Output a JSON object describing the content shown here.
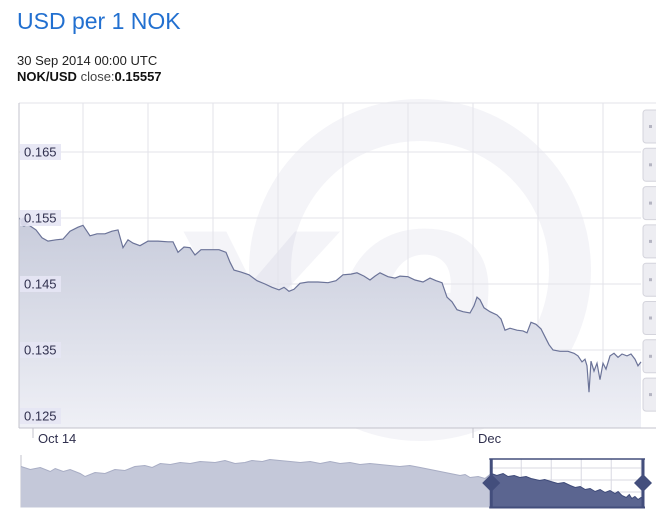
{
  "header": {
    "title": "USD per 1 NOK",
    "timestamp": "30 Sep 2014 00:00 UTC",
    "pair_label": "NOK/USD",
    "close_label": "close:",
    "close_value": "0.15557"
  },
  "colors": {
    "title_blue": "#2270d0",
    "grid": "#e3e3ea",
    "axis_line": "#c3c3cc",
    "tick_text": "#30304e",
    "ylabel_bg": "#e6e6f4",
    "line": "#6b7398",
    "area_top": "#c6cada",
    "area_bottom": "#eff0f6",
    "marker": "#4b537b",
    "nav_pale_fill": "#c4c8d9",
    "nav_pale_line": "#a8adc4",
    "nav_dark_fill": "#5b6590",
    "nav_dark_line": "#3e4a78",
    "nav_outline": "#434e7c",
    "nav_grid": "#d9d9e2",
    "side_button_bg": "#ededf2",
    "side_button_border": "#d4d4dc",
    "watermark": "rgba(110,120,160,0.08)"
  },
  "side_buttons": {
    "count": 8
  },
  "chart_data": {
    "type": "area",
    "title": "USD per 1 NOK",
    "xlabel": "",
    "ylabel": "",
    "ylim": [
      0.1232,
      0.1724
    ],
    "y_ticks": [
      0.165,
      0.155,
      0.145,
      0.135,
      0.125
    ],
    "x_ticks": [
      {
        "f": 0.0225,
        "label": "Oct 14"
      },
      {
        "f": 0.7299,
        "label": "Dec"
      }
    ],
    "x_gridlines_f": [
      0.1029,
      0.2074,
      0.3119,
      0.4164,
      0.5209,
      0.6254,
      0.7299,
      0.8344,
      0.9389
    ],
    "grid": true,
    "legend": "none",
    "series": [
      {
        "name": "NOK/USD",
        "marker_first_point": true,
        "points": [
          [
            0.0,
            0.155
          ],
          [
            0.008,
            0.1544
          ],
          [
            0.0177,
            0.1538
          ],
          [
            0.0273,
            0.1532
          ],
          [
            0.037,
            0.152
          ],
          [
            0.0466,
            0.1515
          ],
          [
            0.0595,
            0.1517
          ],
          [
            0.0707,
            0.1518
          ],
          [
            0.082,
            0.153
          ],
          [
            0.0949,
            0.1536
          ],
          [
            0.1029,
            0.1539
          ],
          [
            0.1141,
            0.1523
          ],
          [
            0.1254,
            0.1526
          ],
          [
            0.1383,
            0.1526
          ],
          [
            0.1495,
            0.153
          ],
          [
            0.1592,
            0.1532
          ],
          [
            0.1672,
            0.1505
          ],
          [
            0.1752,
            0.1517
          ],
          [
            0.1833,
            0.1512
          ],
          [
            0.1945,
            0.1508
          ],
          [
            0.2074,
            0.1515
          ],
          [
            0.2235,
            0.1515
          ],
          [
            0.2395,
            0.1514
          ],
          [
            0.2476,
            0.1514
          ],
          [
            0.2556,
            0.1498
          ],
          [
            0.2653,
            0.1506
          ],
          [
            0.2749,
            0.1505
          ],
          [
            0.283,
            0.1494
          ],
          [
            0.2926,
            0.1502
          ],
          [
            0.3071,
            0.1502
          ],
          [
            0.3215,
            0.1502
          ],
          [
            0.3328,
            0.1498
          ],
          [
            0.3392,
            0.1483
          ],
          [
            0.3457,
            0.1471
          ],
          [
            0.3569,
            0.1468
          ],
          [
            0.3698,
            0.1464
          ],
          [
            0.3826,
            0.1455
          ],
          [
            0.3955,
            0.145
          ],
          [
            0.4068,
            0.1445
          ],
          [
            0.418,
            0.1441
          ],
          [
            0.426,
            0.1445
          ],
          [
            0.4341,
            0.1439
          ],
          [
            0.4421,
            0.1442
          ],
          [
            0.4518,
            0.1451
          ],
          [
            0.4646,
            0.1453
          ],
          [
            0.4807,
            0.1453
          ],
          [
            0.4968,
            0.1452
          ],
          [
            0.5096,
            0.1455
          ],
          [
            0.5209,
            0.1464
          ],
          [
            0.5338,
            0.1465
          ],
          [
            0.5434,
            0.1467
          ],
          [
            0.5547,
            0.1462
          ],
          [
            0.5643,
            0.1456
          ],
          [
            0.5723,
            0.1462
          ],
          [
            0.5804,
            0.1467
          ],
          [
            0.5932,
            0.1461
          ],
          [
            0.6045,
            0.1459
          ],
          [
            0.6125,
            0.1462
          ],
          [
            0.6254,
            0.1461
          ],
          [
            0.6366,
            0.1456
          ],
          [
            0.6495,
            0.1453
          ],
          [
            0.6608,
            0.1459
          ],
          [
            0.6704,
            0.1455
          ],
          [
            0.6801,
            0.1452
          ],
          [
            0.6881,
            0.143
          ],
          [
            0.6962,
            0.1423
          ],
          [
            0.7042,
            0.1411
          ],
          [
            0.7138,
            0.1408
          ],
          [
            0.7251,
            0.1406
          ],
          [
            0.7315,
            0.1417
          ],
          [
            0.7363,
            0.143
          ],
          [
            0.7412,
            0.1426
          ],
          [
            0.7476,
            0.1414
          ],
          [
            0.7572,
            0.1408
          ],
          [
            0.7685,
            0.1403
          ],
          [
            0.7749,
            0.1397
          ],
          [
            0.7814,
            0.138
          ],
          [
            0.7894,
            0.1383
          ],
          [
            0.8006,
            0.138
          ],
          [
            0.8103,
            0.1379
          ],
          [
            0.8167,
            0.1376
          ],
          [
            0.8232,
            0.1392
          ],
          [
            0.8312,
            0.1389
          ],
          [
            0.8392,
            0.1382
          ],
          [
            0.8457,
            0.137
          ],
          [
            0.8521,
            0.1358
          ],
          [
            0.8585,
            0.135
          ],
          [
            0.8698,
            0.1348
          ],
          [
            0.8826,
            0.1348
          ],
          [
            0.8923,
            0.1345
          ],
          [
            0.8987,
            0.1341
          ],
          [
            0.9051,
            0.1332
          ],
          [
            0.91,
            0.1336
          ],
          [
            0.9132,
            0.1326
          ],
          [
            0.9164,
            0.1286
          ],
          [
            0.9196,
            0.1333
          ],
          [
            0.9245,
            0.1318
          ],
          [
            0.9293,
            0.133
          ],
          [
            0.9341,
            0.1305
          ],
          [
            0.9389,
            0.133
          ],
          [
            0.9437,
            0.1321
          ],
          [
            0.9502,
            0.1341
          ],
          [
            0.9566,
            0.1345
          ],
          [
            0.963,
            0.1339
          ],
          [
            0.9695,
            0.1344
          ],
          [
            0.9775,
            0.1341
          ],
          [
            0.9839,
            0.1344
          ],
          [
            0.9904,
            0.1336
          ],
          [
            0.9952,
            0.1326
          ],
          [
            1.0,
            0.1332
          ]
        ]
      }
    ],
    "navigator": {
      "selected_f": [
        0.756,
        1.0
      ],
      "points": [
        [
          0.0,
          0.82
        ],
        [
          0.015,
          0.76
        ],
        [
          0.031,
          0.8
        ],
        [
          0.047,
          0.72
        ],
        [
          0.055,
          0.78
        ],
        [
          0.068,
          0.72
        ],
        [
          0.079,
          0.76
        ],
        [
          0.095,
          0.68
        ],
        [
          0.103,
          0.62
        ],
        [
          0.119,
          0.7
        ],
        [
          0.135,
          0.68
        ],
        [
          0.151,
          0.76
        ],
        [
          0.167,
          0.74
        ],
        [
          0.183,
          0.82
        ],
        [
          0.199,
          0.84
        ],
        [
          0.211,
          0.8
        ],
        [
          0.224,
          0.88
        ],
        [
          0.24,
          0.86
        ],
        [
          0.256,
          0.9
        ],
        [
          0.272,
          0.88
        ],
        [
          0.288,
          0.92
        ],
        [
          0.312,
          0.9
        ],
        [
          0.328,
          0.94
        ],
        [
          0.344,
          0.88
        ],
        [
          0.36,
          0.9
        ],
        [
          0.371,
          0.94
        ],
        [
          0.388,
          0.92
        ],
        [
          0.4,
          0.96
        ],
        [
          0.416,
          0.94
        ],
        [
          0.433,
          0.92
        ],
        [
          0.449,
          0.9
        ],
        [
          0.465,
          0.92
        ],
        [
          0.481,
          0.88
        ],
        [
          0.497,
          0.92
        ],
        [
          0.513,
          0.88
        ],
        [
          0.529,
          0.9
        ],
        [
          0.545,
          0.86
        ],
        [
          0.561,
          0.88
        ],
        [
          0.577,
          0.86
        ],
        [
          0.593,
          0.84
        ],
        [
          0.609,
          0.82
        ],
        [
          0.625,
          0.84
        ],
        [
          0.642,
          0.8
        ],
        [
          0.658,
          0.76
        ],
        [
          0.674,
          0.72
        ],
        [
          0.69,
          0.68
        ],
        [
          0.706,
          0.64
        ],
        [
          0.714,
          0.66
        ],
        [
          0.722,
          0.6
        ],
        [
          0.735,
          0.62
        ],
        [
          0.746,
          0.58
        ],
        [
          0.756,
          0.68
        ],
        [
          0.765,
          0.64
        ],
        [
          0.775,
          0.68
        ],
        [
          0.783,
          0.62
        ],
        [
          0.793,
          0.64
        ],
        [
          0.802,
          0.6
        ],
        [
          0.812,
          0.62
        ],
        [
          0.82,
          0.58
        ],
        [
          0.834,
          0.54
        ],
        [
          0.842,
          0.56
        ],
        [
          0.852,
          0.52
        ],
        [
          0.863,
          0.48
        ],
        [
          0.873,
          0.5
        ],
        [
          0.883,
          0.44
        ],
        [
          0.891,
          0.4
        ],
        [
          0.899,
          0.42
        ],
        [
          0.907,
          0.36
        ],
        [
          0.915,
          0.38
        ],
        [
          0.923,
          0.32
        ],
        [
          0.931,
          0.36
        ],
        [
          0.939,
          0.3
        ],
        [
          0.947,
          0.34
        ],
        [
          0.955,
          0.28
        ],
        [
          0.96,
          0.32
        ],
        [
          0.966,
          0.24
        ],
        [
          0.973,
          0.2
        ],
        [
          0.978,
          0.26
        ],
        [
          0.982,
          0.18
        ],
        [
          0.987,
          0.22
        ],
        [
          0.992,
          0.16
        ],
        [
          0.997,
          0.2
        ],
        [
          1.0,
          0.18
        ]
      ]
    },
    "watermark_text": "xe"
  }
}
